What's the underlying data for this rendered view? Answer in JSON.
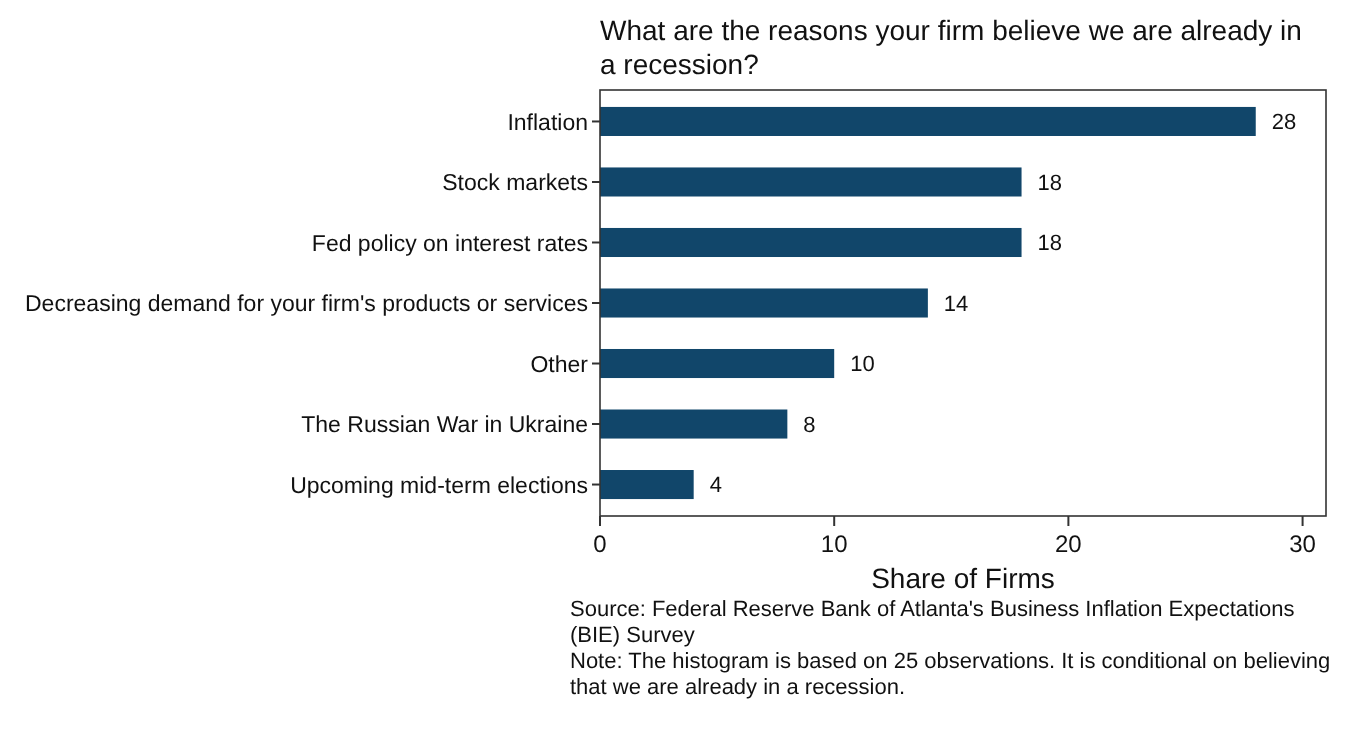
{
  "chart_data": {
    "type": "bar",
    "orientation": "horizontal",
    "title": "What are the reasons your firm believe we are already in a recession?",
    "categories": [
      "Inflation",
      "Stock markets",
      "Fed policy on interest rates",
      "Decreasing demand for your firm's products or services",
      "Other",
      "The Russian War in Ukraine",
      "Upcoming mid-term elections"
    ],
    "values": [
      28,
      18,
      18,
      14,
      10,
      8,
      4
    ],
    "color": "#11466a",
    "data_labels": true,
    "xlabel": "Share of Firms",
    "xlim": [
      0,
      31
    ],
    "xticks": [
      0,
      10,
      20,
      30
    ],
    "grid": false,
    "annotations": [
      "Source: Federal Reserve Bank of Atlanta's Business Inflation Expectations (BIE) Survey",
      "Note: The histogram is based on 25 observations. It is conditional on believing that we are already in a recession."
    ]
  }
}
